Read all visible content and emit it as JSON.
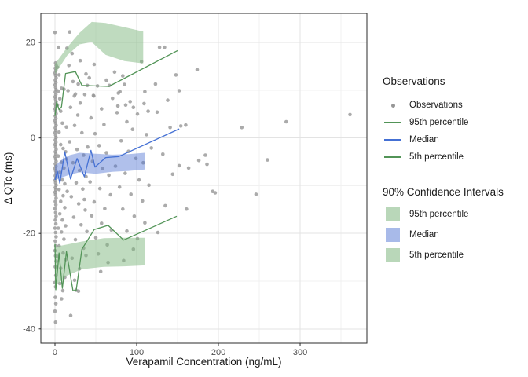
{
  "colors": {
    "point": "#969696",
    "green_line": "#529457",
    "blue_line": "#4470d4",
    "green_fill": "#7fb77f",
    "blue_fill": "#4f74d2",
    "green_fill_solid": "#b9d7b9",
    "blue_fill_solid": "#a8bae9",
    "grid_major": "#e3e3e3",
    "grid_minor": "#f1f1f1",
    "panel_border": "#2b2b2b",
    "tick_text": "#4d4d4d",
    "axis_title": "#1a1a1a"
  },
  "legend": {
    "observations": {
      "title": "Observations",
      "items": [
        {
          "label": "Observations",
          "key": "point"
        },
        {
          "label": "95th percentile",
          "key": "green-line"
        },
        {
          "label": "Median",
          "key": "blue-line"
        },
        {
          "label": "5th percentile",
          "key": "green-line"
        }
      ]
    },
    "ci": {
      "title": "90% Confidence Intervals",
      "items": [
        {
          "label": "95th percentile",
          "key": "green-swatch"
        },
        {
          "label": "Median",
          "key": "blue-swatch"
        },
        {
          "label": "5th percentile",
          "key": "green-swatch"
        }
      ]
    }
  },
  "chart_data": {
    "type": "scatter",
    "title": "",
    "xlabel": "Verapamil Concentration (ng/mL)",
    "ylabel": "Δ QTc (ms)",
    "xlim": [
      -17.3,
      381.7
    ],
    "ylim": [
      -43.0,
      26.1
    ],
    "x_ticks": {
      "values": [
        0,
        100,
        200,
        300
      ],
      "labels": [
        "0",
        "100",
        "200",
        "300"
      ]
    },
    "y_ticks": {
      "values": [
        20,
        0,
        -20,
        -40
      ],
      "labels": [
        "20",
        "0",
        "-20",
        "-40"
      ]
    },
    "x_minor": [
      50,
      150,
      250,
      350
    ],
    "y_minor": [
      10,
      -10,
      -30
    ],
    "grid": true,
    "legend_position": "right",
    "observations": [
      [
        0,
        22.1
      ],
      [
        0.8,
        15.7
      ],
      [
        1.4,
        15.2
      ],
      [
        0.4,
        14.6
      ],
      [
        1.1,
        14.1
      ],
      [
        0,
        13.6
      ],
      [
        0.8,
        13.1
      ],
      [
        1.4,
        12.6
      ],
      [
        0.4,
        12.1
      ],
      [
        1.1,
        11.6
      ],
      [
        0,
        11.1
      ],
      [
        0.8,
        10.6
      ],
      [
        1.4,
        10.1
      ],
      [
        0.4,
        9.6
      ],
      [
        1.1,
        9.1
      ],
      [
        0,
        8.6
      ],
      [
        0.8,
        8.1
      ],
      [
        1.4,
        7.6
      ],
      [
        0.4,
        7.1
      ],
      [
        1.1,
        6.6
      ],
      [
        0,
        6.1
      ],
      [
        0.8,
        5.6
      ],
      [
        1.4,
        5.1
      ],
      [
        0.4,
        4.6
      ],
      [
        1.1,
        4.1
      ],
      [
        0,
        3.6
      ],
      [
        0.8,
        3.1
      ],
      [
        1.4,
        2.6
      ],
      [
        0.4,
        2.1
      ],
      [
        1.1,
        1.6
      ],
      [
        0,
        1.1
      ],
      [
        0.8,
        0.6
      ],
      [
        1.4,
        0.1
      ],
      [
        0.4,
        -0.4
      ],
      [
        1.1,
        -0.9
      ],
      [
        0,
        -1.4
      ],
      [
        0.8,
        -1.9
      ],
      [
        1.4,
        -2.4
      ],
      [
        0.4,
        -2.9
      ],
      [
        1.1,
        -3.4
      ],
      [
        0,
        -3.9
      ],
      [
        0.8,
        -4.4
      ],
      [
        1.4,
        -4.9
      ],
      [
        0.4,
        -5.4
      ],
      [
        1.1,
        -5.9
      ],
      [
        0,
        -6.4
      ],
      [
        0.8,
        -6.9
      ],
      [
        1.4,
        -7.4
      ],
      [
        0.4,
        -7.9
      ],
      [
        1.1,
        -8.4
      ],
      [
        0,
        -8.9
      ],
      [
        0.8,
        -9.4
      ],
      [
        1.4,
        -9.9
      ],
      [
        0.4,
        -10.4
      ],
      [
        1.1,
        -10.9
      ],
      [
        0,
        -11.4
      ],
      [
        0.8,
        -11.9
      ],
      [
        1.4,
        -12.6
      ],
      [
        0.4,
        -13.3
      ],
      [
        1.1,
        -14
      ],
      [
        0,
        -14.8
      ],
      [
        0.8,
        -15.6
      ],
      [
        1.4,
        -16.4
      ],
      [
        0.4,
        -17.2
      ],
      [
        1.1,
        -18
      ],
      [
        0,
        -18.9
      ],
      [
        0.8,
        -19.8
      ],
      [
        1.4,
        -20.7
      ],
      [
        0.4,
        -21.6
      ],
      [
        1.1,
        -22.6
      ],
      [
        0,
        -23.6
      ],
      [
        0.8,
        -24.7
      ],
      [
        1.4,
        -25.8
      ],
      [
        0.4,
        -27
      ],
      [
        1.1,
        -28.8
      ],
      [
        0,
        -30.3
      ],
      [
        0.8,
        -31.2
      ],
      [
        0.4,
        -33.4
      ],
      [
        1.1,
        -34.7
      ],
      [
        0,
        -36.3
      ],
      [
        0.8,
        -38.6
      ],
      [
        4.5,
        19
      ],
      [
        14.7,
        18.8
      ],
      [
        21,
        17.7
      ],
      [
        31,
        16.2
      ],
      [
        48,
        15.4
      ],
      [
        18,
        22.2
      ],
      [
        3,
        14.8
      ],
      [
        5,
        13.2
      ],
      [
        4,
        9.8
      ],
      [
        6,
        8.2
      ],
      [
        8,
        10.4
      ],
      [
        7,
        5.6
      ],
      [
        9,
        3.1
      ],
      [
        5,
        1.2
      ],
      [
        7,
        -1.4
      ],
      [
        10,
        -2.2
      ],
      [
        4,
        -3.8
      ],
      [
        8,
        -5.1
      ],
      [
        11,
        -6.3
      ],
      [
        6,
        -7.2
      ],
      [
        9,
        -8.8
      ],
      [
        12,
        -9.6
      ],
      [
        5,
        -10.8
      ],
      [
        10,
        -12.1
      ],
      [
        7,
        -13.3
      ],
      [
        12,
        -14.6
      ],
      [
        6,
        -15.9
      ],
      [
        9,
        -17.2
      ],
      [
        13,
        -18.4
      ],
      [
        8,
        -19.7
      ],
      [
        11,
        -21.2
      ],
      [
        5,
        -22.6
      ],
      [
        10,
        -24.1
      ],
      [
        13,
        -25.5
      ],
      [
        7,
        -27.3
      ],
      [
        12,
        -29.2
      ],
      [
        14,
        -4.4
      ],
      [
        3,
        6.9
      ],
      [
        14,
        2.3
      ],
      [
        13,
        -2.9
      ],
      [
        15,
        -11.2
      ],
      [
        4,
        -18.9
      ],
      [
        3,
        -24.8
      ],
      [
        6,
        -30.5
      ],
      [
        17,
        15.2
      ],
      [
        22,
        11.8
      ],
      [
        25,
        9.2
      ],
      [
        19,
        6.4
      ],
      [
        28,
        4.8
      ],
      [
        31,
        7.3
      ],
      [
        24,
        2.6
      ],
      [
        33,
        1.1
      ],
      [
        18,
        -0.8
      ],
      [
        27,
        -2.4
      ],
      [
        35,
        -3.6
      ],
      [
        22,
        -5.2
      ],
      [
        30,
        -6.8
      ],
      [
        38,
        -8.1
      ],
      [
        26,
        -9.4
      ],
      [
        34,
        -10.7
      ],
      [
        20,
        -12.3
      ],
      [
        29,
        -13.8
      ],
      [
        37,
        -15.1
      ],
      [
        23,
        -16.6
      ],
      [
        32,
        -18.2
      ],
      [
        39,
        -19.6
      ],
      [
        25,
        -21.3
      ],
      [
        35,
        -23.1
      ],
      [
        21,
        -25.2
      ],
      [
        30,
        -27.4
      ],
      [
        38,
        -24.6
      ],
      [
        36,
        -12.9
      ],
      [
        40,
        -1.9
      ],
      [
        16,
        9.9
      ],
      [
        38,
        13.4
      ],
      [
        24,
        -29.8
      ],
      [
        11,
        10.2
      ],
      [
        28.5,
        11.3
      ],
      [
        39.6,
        11
      ],
      [
        23.8,
        8.8
      ],
      [
        36.4,
        9.1
      ],
      [
        42,
        12.6
      ],
      [
        47,
        8.9
      ],
      [
        52,
        10.9
      ],
      [
        57,
        6.1
      ],
      [
        44,
        4.2
      ],
      [
        60,
        2.8
      ],
      [
        49,
        0.9
      ],
      [
        54,
        -1.6
      ],
      [
        63,
        -3.1
      ],
      [
        46,
        -4.9
      ],
      [
        58,
        -6.4
      ],
      [
        66,
        -7.8
      ],
      [
        43,
        -9.2
      ],
      [
        55,
        -10.6
      ],
      [
        68,
        -11.9
      ],
      [
        48,
        -13.4
      ],
      [
        61,
        -14.8
      ],
      [
        45,
        -16.3
      ],
      [
        57,
        -17.9
      ],
      [
        69,
        -19.3
      ],
      [
        50,
        -20.9
      ],
      [
        64,
        -22.4
      ],
      [
        53,
        -24.3
      ],
      [
        65,
        -26.1
      ],
      [
        56,
        -28
      ],
      [
        47.5,
        8.8
      ],
      [
        63,
        12.1
      ],
      [
        66.5,
        11
      ],
      [
        9.6,
        -32
      ],
      [
        25.7,
        -31.9
      ],
      [
        28.8,
        -32.1
      ],
      [
        8,
        -33.7
      ],
      [
        19.2,
        -37.2
      ],
      [
        73,
        13.8
      ],
      [
        92,
        7.6
      ],
      [
        76,
        5.3
      ],
      [
        88,
        3.4
      ],
      [
        95,
        1.8
      ],
      [
        81,
        -0.6
      ],
      [
        90,
        -2.8
      ],
      [
        99,
        -4.3
      ],
      [
        74,
        -5.9
      ],
      [
        86,
        -7.4
      ],
      [
        103,
        -8.8
      ],
      [
        79,
        -10.3
      ],
      [
        93,
        -11.8
      ],
      [
        107,
        -13.2
      ],
      [
        83,
        -14.9
      ],
      [
        97,
        -16.4
      ],
      [
        110,
        -17.8
      ],
      [
        88,
        -19.5
      ],
      [
        101,
        -21.1
      ],
      [
        115,
        -9.9
      ],
      [
        108,
        -5.2
      ],
      [
        118,
        -2.1
      ],
      [
        112,
        0.7
      ],
      [
        85,
        11.2
      ],
      [
        96,
        -23.3
      ],
      [
        84,
        -25.7
      ],
      [
        77.6,
        9.4
      ],
      [
        110,
        9.7
      ],
      [
        83,
        13
      ],
      [
        79.5,
        9.7
      ],
      [
        70.5,
        8.3
      ],
      [
        77,
        6.7
      ],
      [
        86.5,
        6.9
      ],
      [
        96,
        6.4
      ],
      [
        109,
        7.2
      ],
      [
        114,
        5.6
      ],
      [
        101,
        5
      ],
      [
        106,
        16
      ],
      [
        123,
        11.3
      ],
      [
        128,
        19
      ],
      [
        134,
        19
      ],
      [
        152,
        9.9
      ],
      [
        125,
        5.4
      ],
      [
        132,
        -3.4
      ],
      [
        138,
        7.9
      ],
      [
        144,
        -7.6
      ],
      [
        135,
        -14.2
      ],
      [
        126,
        -19.8
      ],
      [
        141,
        2.2
      ],
      [
        148,
        13.2
      ],
      [
        152,
        -5.8
      ],
      [
        163.5,
        -6.3
      ],
      [
        176,
        -4.7
      ],
      [
        184,
        -3.6
      ],
      [
        186,
        -5.5
      ],
      [
        260,
        -4.6
      ],
      [
        228.6,
        2.2
      ],
      [
        154,
        2.5
      ],
      [
        160,
        2.7
      ],
      [
        283,
        3.4
      ],
      [
        361,
        4.9
      ],
      [
        193,
        -11.2
      ],
      [
        196,
        -11.5
      ],
      [
        246,
        -11.8
      ],
      [
        161,
        -14.9
      ],
      [
        174,
        14.3
      ]
    ],
    "series": [
      {
        "name": "95th percentile line",
        "type": "line",
        "color_key": "green_line",
        "points": [
          [
            0,
            4.6
          ],
          [
            2,
            7.6
          ],
          [
            5,
            5.9
          ],
          [
            8,
            6.5
          ],
          [
            13,
            13.5
          ],
          [
            25,
            13.9
          ],
          [
            33,
            11.0
          ],
          [
            66,
            10.8
          ],
          [
            150,
            18.3
          ]
        ]
      },
      {
        "name": "Median line",
        "type": "line",
        "color_key": "blue_line",
        "points": [
          [
            0,
            -8.8
          ],
          [
            3,
            -7.0
          ],
          [
            6,
            -9.5
          ],
          [
            12,
            -2.9
          ],
          [
            19,
            -8.6
          ],
          [
            27,
            -4.3
          ],
          [
            36,
            -8.1
          ],
          [
            44,
            -2.6
          ],
          [
            49,
            -6.1
          ],
          [
            62,
            -4.1
          ],
          [
            78,
            -3.9
          ],
          [
            152,
            1.9
          ]
        ]
      },
      {
        "name": "5th percentile line",
        "type": "line",
        "color_key": "green_line",
        "points": [
          [
            0,
            -22.2
          ],
          [
            1,
            -31.8
          ],
          [
            5,
            -24.1
          ],
          [
            9,
            -31.5
          ],
          [
            14,
            -23.8
          ],
          [
            22,
            -32.0
          ],
          [
            26,
            -31.9
          ],
          [
            33,
            -23.3
          ],
          [
            48,
            -19.2
          ],
          [
            65,
            -18.3
          ],
          [
            84,
            -21.4
          ],
          [
            149,
            -16.4
          ]
        ]
      }
    ],
    "ribbons": [
      {
        "name": "95th percentile 90% CI",
        "color_key": "green_fill",
        "opacity": 0.5,
        "x": [
          0,
          15,
          30,
          45,
          62,
          85,
          108
        ],
        "hi": [
          15.5,
          19,
          22,
          24.3,
          24.1,
          23.2,
          22.3
        ],
        "lo": [
          13.4,
          17.3,
          19.6,
          20.1,
          17.4,
          16.1,
          15.6
        ]
      },
      {
        "name": "5th percentile 90% CI",
        "color_key": "green_fill",
        "opacity": 0.5,
        "x": [
          0,
          15,
          33,
          60,
          85,
          110
        ],
        "hi": [
          -22.8,
          -22.3,
          -21.7,
          -21.0,
          -20.9,
          -20.9
        ],
        "lo": [
          -31.0,
          -28.8,
          -27.5,
          -27.0,
          -26.9,
          -26.7
        ]
      },
      {
        "name": "Median 90% CI",
        "color_key": "blue_fill",
        "opacity": 0.45,
        "x": [
          0,
          8,
          18,
          30,
          50,
          70,
          90,
          110
        ],
        "hi": [
          -5.8,
          -4.6,
          -3.6,
          -3.1,
          -3.3,
          -3.5,
          -3.4,
          -3.1
        ],
        "lo": [
          -8.8,
          -8.3,
          -7.7,
          -7.2,
          -7.5,
          -7.1,
          -6.9,
          -6.6
        ]
      }
    ]
  }
}
